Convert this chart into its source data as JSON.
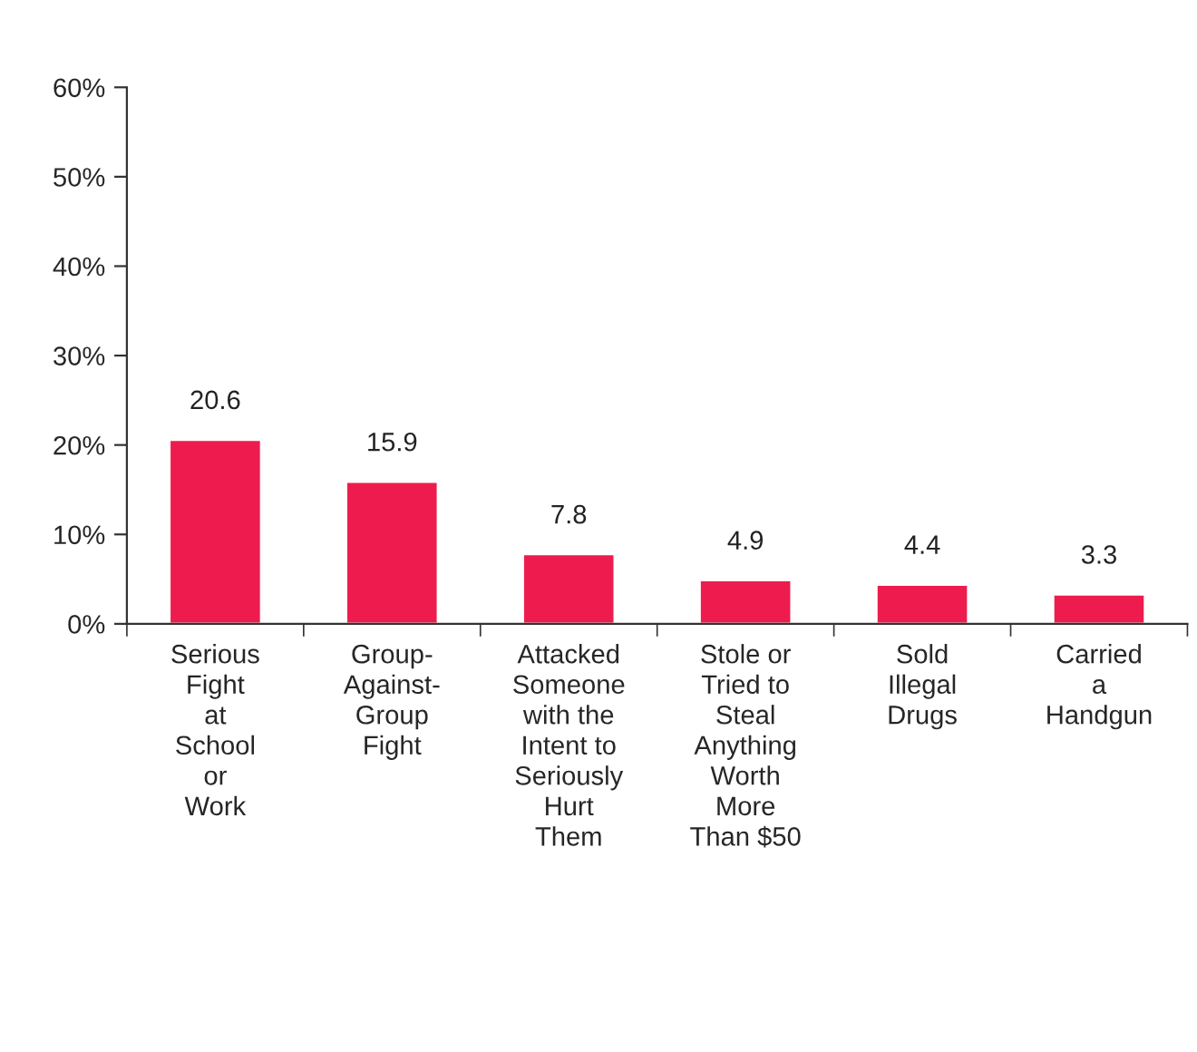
{
  "chart_data": {
    "type": "bar",
    "categories": [
      "Serious\nFight\nat\nSchool\nor\nWork",
      "Group-\nAgainst-\nGroup\nFight",
      "Attacked\nSomeone\nwith the\nIntent to\nSeriously\nHurt\nThem",
      "Stole or\nTried to\nSteal\nAnything\nWorth\nMore\nThan $50",
      "Sold\nIllegal\nDrugs",
      "Carried\na\nHandgun"
    ],
    "values": [
      20.6,
      15.9,
      7.8,
      4.9,
      4.4,
      3.3
    ],
    "color": "#ee1c4e",
    "data_labels": true,
    "ylim": [
      0,
      60
    ],
    "yticks": [
      {
        "value": 0,
        "label": "0%"
      },
      {
        "value": 10,
        "label": "10%"
      },
      {
        "value": 20,
        "label": "20%"
      },
      {
        "value": 30,
        "label": "30%"
      },
      {
        "value": 40,
        "label": "40%"
      },
      {
        "value": 50,
        "label": "50%"
      },
      {
        "value": 60,
        "label": "60%"
      }
    ],
    "grid": false,
    "legend": false
  }
}
